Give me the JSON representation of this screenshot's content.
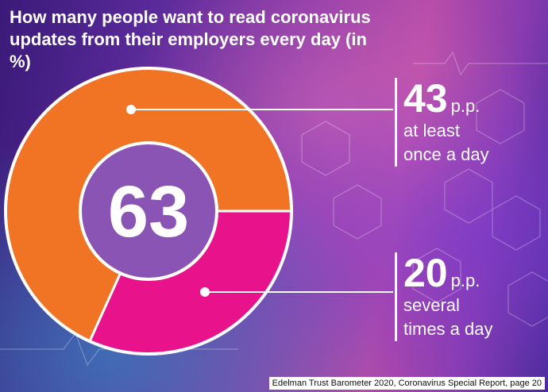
{
  "title": "How many people want to read coronavirus updates from their employers every day (in %)",
  "source": "Edelman Trust Barometer 2020, Coronavirus Special Report, page 20",
  "chart_data": {
    "type": "pie",
    "center_label": "63",
    "slices": [
      {
        "value": 43,
        "value_label": "43",
        "unit": "p.p.",
        "desc_lines": [
          "at least",
          "once a day"
        ],
        "color": "#f07424"
      },
      {
        "value": 20,
        "value_label": "20",
        "unit": "p.p.",
        "desc_lines": [
          "several",
          "times a day"
        ],
        "color": "#e8138a"
      }
    ],
    "hole_color": "#8a54b4"
  }
}
